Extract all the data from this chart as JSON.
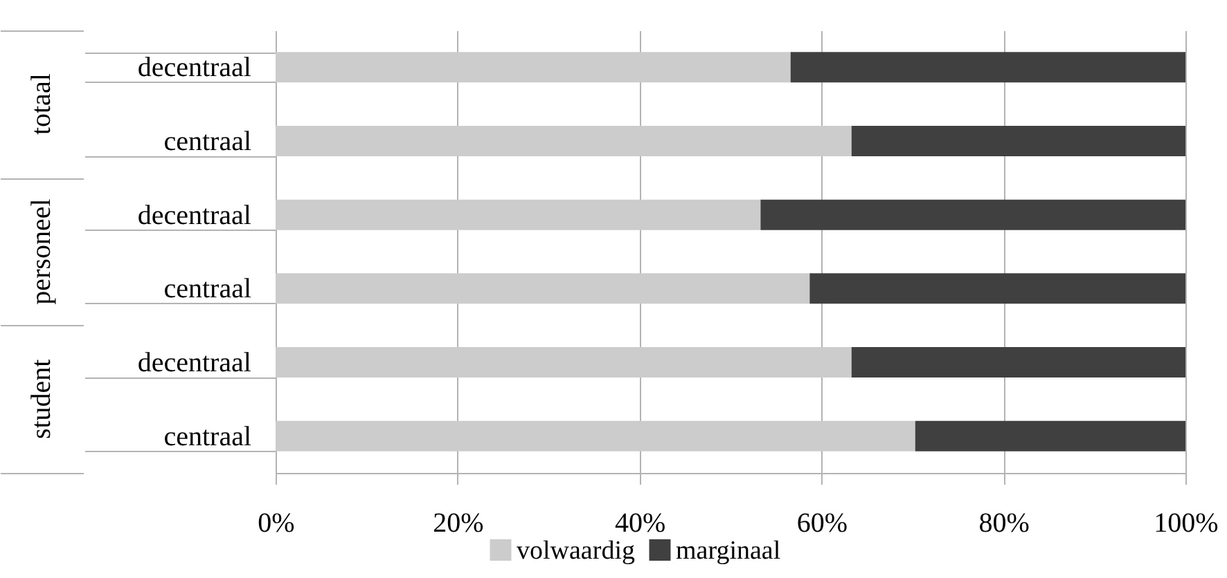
{
  "chart_data": {
    "type": "bar",
    "orientation": "horizontal",
    "stacked": true,
    "categories": [
      "decentraal",
      "centraal",
      "decentraal",
      "centraal",
      "decentraal",
      "centraal"
    ],
    "annotations": [
      "totaal",
      "personeel",
      "student"
    ],
    "series": [
      {
        "name": "volwaardig",
        "color": "#cccccc",
        "values": [
          56.6,
          63.3,
          53.3,
          58.7,
          63.3,
          70.3
        ]
      },
      {
        "name": "marginaal",
        "color": "#404040",
        "values": [
          43.4,
          36.7,
          46.7,
          41.3,
          36.7,
          29.7
        ]
      }
    ],
    "xlim": [
      0,
      100
    ],
    "xticks": [
      {
        "value": 0,
        "label": "0%"
      },
      {
        "value": 20,
        "label": "20%"
      },
      {
        "value": 40,
        "label": "40%"
      },
      {
        "value": 60,
        "label": "60%"
      },
      {
        "value": 80,
        "label": "80%"
      },
      {
        "value": 100,
        "label": "100%"
      }
    ],
    "grid": "x",
    "legend": "bottom"
  }
}
